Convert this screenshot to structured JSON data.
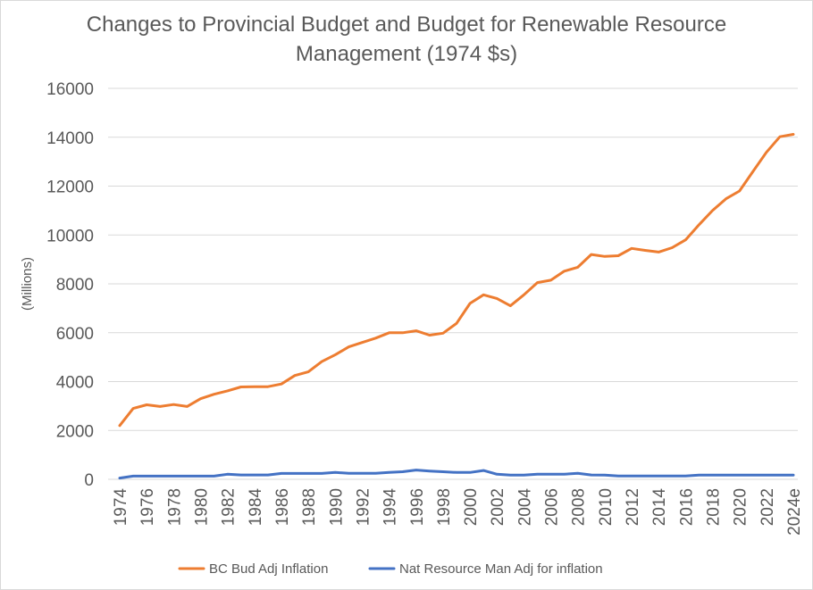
{
  "chart_data": {
    "type": "line",
    "title_lines": [
      "Changes to Provincial Budget and Budget for Renewable Resource",
      "Management (1974 $s)"
    ],
    "ylabel": "(Millions)",
    "xlabel": "",
    "ylim": [
      0,
      16000
    ],
    "y_ticks": [
      0,
      2000,
      4000,
      6000,
      8000,
      10000,
      12000,
      14000,
      16000
    ],
    "grid": "horizontal",
    "legend_position": "bottom",
    "x": [
      "1974",
      "1975",
      "1976",
      "1977",
      "1978",
      "1979",
      "1980",
      "1981",
      "1982",
      "1983",
      "1984",
      "1985",
      "1986",
      "1987",
      "1988",
      "1989",
      "1990",
      "1991",
      "1992",
      "1993",
      "1994",
      "1995",
      "1996",
      "1997",
      "1998",
      "1999",
      "2000",
      "2001",
      "2002",
      "2003",
      "2004",
      "2005",
      "2006",
      "2007",
      "2008",
      "2009",
      "2010",
      "2011",
      "2012",
      "2013",
      "2014",
      "2015",
      "2016",
      "2017",
      "2018",
      "2019",
      "2020",
      "2021",
      "2022",
      "2023",
      "2024e"
    ],
    "x_tick_labels": [
      "1974",
      "1976",
      "1978",
      "1980",
      "1982",
      "1984",
      "1986",
      "1988",
      "1990",
      "1992",
      "1994",
      "1996",
      "1998",
      "2000",
      "2002",
      "2004",
      "2006",
      "2008",
      "2010",
      "2012",
      "2014",
      "2016",
      "2018",
      "2020",
      "2022",
      "2024e"
    ],
    "series": [
      {
        "name": "BC Bud Adj Inflation",
        "color": "#ed7d31",
        "values": [
          2200,
          2900,
          3050,
          2980,
          3060,
          2980,
          3300,
          3480,
          3620,
          3780,
          3790,
          3790,
          3900,
          4250,
          4400,
          4820,
          5100,
          5420,
          5600,
          5780,
          6000,
          6000,
          6080,
          5900,
          5980,
          6380,
          7200,
          7550,
          7400,
          7100,
          7550,
          8050,
          8150,
          8520,
          8680,
          9200,
          9120,
          9150,
          9450,
          9370,
          9300,
          9480,
          9800,
          10420,
          11000,
          11480,
          11800,
          12600,
          13380,
          14020,
          14120
        ]
      },
      {
        "name": "Nat Resource Man Adj for inflation",
        "color": "#4472c4",
        "values": [
          50,
          130,
          130,
          130,
          130,
          130,
          130,
          130,
          210,
          180,
          180,
          180,
          240,
          240,
          240,
          240,
          280,
          250,
          250,
          250,
          280,
          310,
          380,
          340,
          310,
          280,
          280,
          360,
          210,
          170,
          170,
          210,
          210,
          210,
          250,
          180,
          170,
          140,
          140,
          140,
          140,
          140,
          140,
          170,
          170,
          170,
          170,
          170,
          170,
          170,
          170
        ]
      }
    ]
  }
}
